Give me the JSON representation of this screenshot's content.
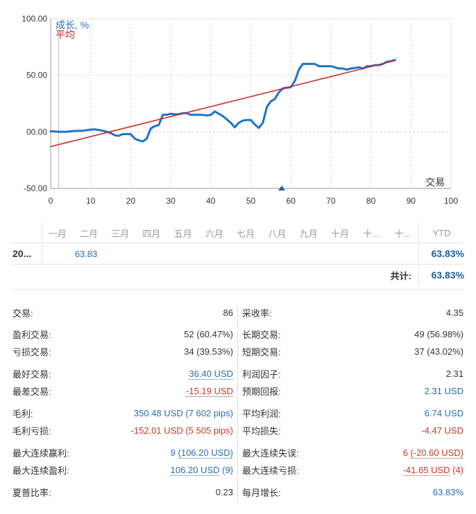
{
  "chart_data": {
    "type": "line",
    "legend": [
      {
        "label": "成长, %",
        "color": "#1a73c9"
      },
      {
        "label": "平均",
        "color": "#d42020"
      }
    ],
    "xlabel": "交易",
    "xlim": [
      0,
      100
    ],
    "ylim": [
      -50,
      100
    ],
    "x_ticks": [
      "0",
      "10",
      "20",
      "30",
      "40",
      "50",
      "60",
      "70",
      "80",
      "90",
      "100"
    ],
    "y_ticks": [
      "100.00",
      "50.00",
      "00.00",
      "-50.00"
    ],
    "series": [
      {
        "name": "成长, %",
        "color": "#1a73c9",
        "points": [
          [
            0,
            0.5
          ],
          [
            2,
            0
          ],
          [
            4,
            0
          ],
          [
            6,
            0.8
          ],
          [
            8,
            1
          ],
          [
            10,
            2
          ],
          [
            11,
            2.2
          ],
          [
            13,
            1
          ],
          [
            14,
            0
          ],
          [
            15,
            -1
          ],
          [
            16,
            -3
          ],
          [
            17,
            -3.5
          ],
          [
            18,
            -2
          ],
          [
            19,
            -2
          ],
          [
            20,
            -2
          ],
          [
            21,
            -6
          ],
          [
            22,
            -7.5
          ],
          [
            23,
            -8.5
          ],
          [
            24,
            -6
          ],
          [
            25,
            3
          ],
          [
            26,
            5
          ],
          [
            27,
            6
          ],
          [
            28,
            15
          ],
          [
            29,
            15
          ],
          [
            30,
            16
          ],
          [
            31,
            15.5
          ],
          [
            32,
            15.5
          ],
          [
            33,
            16.5
          ],
          [
            34,
            16.5
          ],
          [
            35,
            15
          ],
          [
            36,
            15
          ],
          [
            37,
            15
          ],
          [
            38,
            15
          ],
          [
            39,
            14.5
          ],
          [
            40,
            15
          ],
          [
            41,
            18
          ],
          [
            42,
            16
          ],
          [
            43,
            14
          ],
          [
            44,
            11
          ],
          [
            45,
            8
          ],
          [
            46,
            4
          ],
          [
            47,
            8
          ],
          [
            48,
            10
          ],
          [
            49,
            10.5
          ],
          [
            50,
            10.5
          ],
          [
            51,
            6.5
          ],
          [
            52,
            3.5
          ],
          [
            53,
            8
          ],
          [
            54,
            22
          ],
          [
            55,
            27
          ],
          [
            56,
            29
          ],
          [
            57,
            35
          ],
          [
            58,
            38.5
          ],
          [
            59,
            39
          ],
          [
            60,
            39.5
          ],
          [
            61,
            45
          ],
          [
            62,
            55
          ],
          [
            63,
            60
          ],
          [
            64,
            60
          ],
          [
            65,
            60
          ],
          [
            66,
            60
          ],
          [
            67,
            58
          ],
          [
            68,
            58
          ],
          [
            69,
            58
          ],
          [
            70,
            58
          ],
          [
            71,
            57
          ],
          [
            72,
            56
          ],
          [
            73,
            56
          ],
          [
            74,
            55
          ],
          [
            75,
            56
          ],
          [
            76,
            56.5
          ],
          [
            77,
            57
          ],
          [
            78,
            56
          ],
          [
            79,
            58
          ],
          [
            80,
            58
          ],
          [
            81,
            59
          ],
          [
            82,
            59
          ],
          [
            83,
            60
          ],
          [
            84,
            62
          ],
          [
            85,
            62.5
          ],
          [
            86,
            63.5
          ]
        ]
      },
      {
        "name": "平均",
        "color": "#d42020",
        "points": [
          [
            0,
            -13
          ],
          [
            86,
            63
          ]
        ]
      }
    ]
  },
  "monthly_table": {
    "months": [
      "一月",
      "二月",
      "三月",
      "四月",
      "五月",
      "六月",
      "七月",
      "八月",
      "九月",
      "十月",
      "十...",
      "十..."
    ],
    "ytd_header": "YTD",
    "year": "20...",
    "feb_value": "63.83",
    "ytd_value": "63.83%",
    "total_label": "共计:",
    "total_value": "63.83%"
  },
  "stats_left": [
    {
      "label": "交易:",
      "value": "86"
    },
    {
      "label": "盈利交易:",
      "value": "52 (60.47%)"
    },
    {
      "label": "亏损交易:",
      "value": "34 (39.53%)"
    },
    {
      "label": "最好交易:",
      "value": "36.40 USD"
    },
    {
      "label": "最差交易:",
      "value": "-15.19 USD"
    },
    {
      "label": "毛利:",
      "value_a": "350.48 USD",
      "value_b": "(7 602 pips)"
    },
    {
      "label": "毛利亏损:",
      "value_a": "-152.01 USD",
      "value_b": "(5 505 pips)"
    },
    {
      "label": "最大连续赢利:",
      "value_a": "9",
      "value_b": "(106.20 USD)"
    },
    {
      "label": "最大连续盈利:",
      "value_a": "106.20 USD",
      "value_b": "(9)"
    },
    {
      "label": "夏普比率:",
      "value": "0.23"
    }
  ],
  "stats_right": [
    {
      "label": "采收率:",
      "value": "4.35"
    },
    {
      "label": "长期交易:",
      "value": "49 (56.98%)"
    },
    {
      "label": "短期交易:",
      "value": "37 (43.02%)"
    },
    {
      "label": "利润因子:",
      "value": "2.31"
    },
    {
      "label": "预期回报:",
      "value": "2.31 USD"
    },
    {
      "label": "平均利润:",
      "value": "6.74 USD"
    },
    {
      "label": "平均损失:",
      "value": "-4.47 USD"
    },
    {
      "label": "最大连续失误:",
      "value_a": "6",
      "value_b": "(-20.60 USD)"
    },
    {
      "label": "最大连续亏损:",
      "value_a": "-41.65 USD",
      "value_b": "(4)"
    },
    {
      "label": "每月增长:",
      "value": "63.83%"
    }
  ]
}
